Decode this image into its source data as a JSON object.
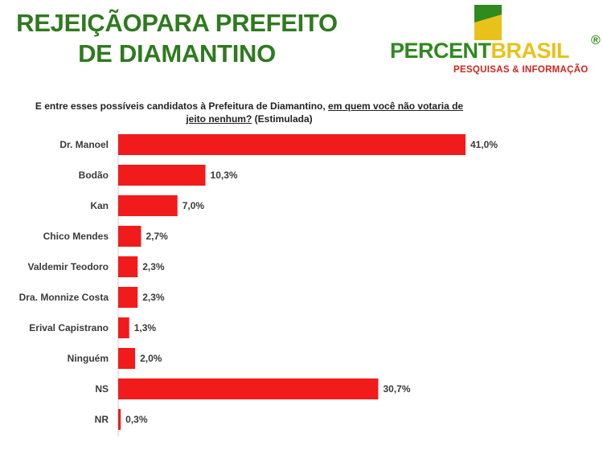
{
  "header": {
    "title": "REJEIÇÃOPARA PREFEITO DE DIAMANTINO",
    "logo": {
      "word_part1": "PERCENT",
      "word_part2": "BRASIL",
      "registered": "®",
      "tagline": "PESQUISAS & INFORMAÇÃO",
      "colors": {
        "green": "#2f8a1f",
        "yellow": "#e8c21a",
        "red": "#d0251c"
      }
    }
  },
  "question": {
    "part1": "E entre esses possíveis candidatos à Prefeitura de Diamantino, ",
    "underlined": "em quem você não votaria de jeito nenhum?",
    "part2": " (Estimulada)"
  },
  "chart_data": {
    "type": "bar",
    "orientation": "horizontal",
    "categories": [
      "Dr. Manoel",
      "Bodão",
      "Kan",
      "Chico Mendes",
      "Valdemir Teodoro",
      "Dra. Monnize Costa",
      "Erival Capistrano",
      "Ninguém",
      "NS",
      "NR"
    ],
    "values": [
      41.0,
      10.3,
      7.0,
      2.7,
      2.3,
      2.3,
      1.3,
      2.0,
      30.7,
      0.3
    ],
    "value_labels": [
      "41,0%",
      "10,3%",
      "7,0%",
      "2,7%",
      "2,3%",
      "2,3%",
      "1,3%",
      "2,0%",
      "30,7%",
      "0,3%"
    ],
    "xlim": [
      0,
      41
    ],
    "grid": false,
    "bar_color": "#f21b1b"
  }
}
